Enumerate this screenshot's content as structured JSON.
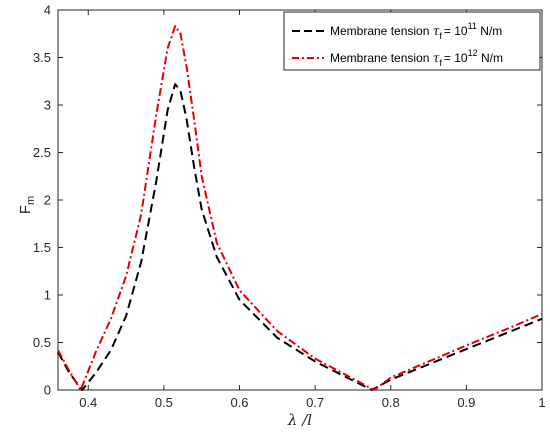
{
  "chart_data": {
    "type": "line",
    "xlabel": "λ /l",
    "ylabel_main": "F",
    "ylabel_sub": "m",
    "xlim": [
      0.36,
      1.0
    ],
    "ylim": [
      0,
      4
    ],
    "xticks": [
      "0.4",
      "0.5",
      "0.6",
      "0.7",
      "0.8",
      "0.9",
      "1"
    ],
    "yticks": [
      "0",
      "0.5",
      "1",
      "1.5",
      "2",
      "2.5",
      "3",
      "3.5",
      "4"
    ],
    "grid": false,
    "legend_position": "top-right",
    "series": [
      {
        "legend_prefix": "Membrane tension",
        "legend_symbol": "τ",
        "legend_sub": "f",
        "legend_value": "= 10",
        "legend_exp": "11",
        "legend_unit": " N/m",
        "color": "#000000",
        "dash": "dashed",
        "x": [
          0.36,
          0.375,
          0.392,
          0.41,
          0.43,
          0.45,
          0.47,
          0.49,
          0.505,
          0.515,
          0.522,
          0.53,
          0.54,
          0.55,
          0.57,
          0.6,
          0.65,
          0.7,
          0.75,
          0.775,
          0.8,
          0.85,
          0.9,
          0.95,
          1.0
        ],
        "y": [
          0.4,
          0.18,
          0.0,
          0.18,
          0.42,
          0.78,
          1.35,
          2.2,
          2.95,
          3.22,
          3.15,
          2.85,
          2.35,
          1.9,
          1.4,
          0.95,
          0.55,
          0.3,
          0.1,
          0.0,
          0.11,
          0.27,
          0.43,
          0.59,
          0.75
        ]
      },
      {
        "legend_prefix": "Membrane tension",
        "legend_symbol": "τ",
        "legend_sub": "f",
        "legend_value": "= 10",
        "legend_exp": "12",
        "legend_unit": " N/m",
        "color": "#e00000",
        "dash": "dashdot",
        "x": [
          0.36,
          0.375,
          0.39,
          0.41,
          0.43,
          0.45,
          0.47,
          0.49,
          0.505,
          0.515,
          0.522,
          0.53,
          0.54,
          0.55,
          0.57,
          0.6,
          0.65,
          0.7,
          0.75,
          0.778,
          0.8,
          0.85,
          0.9,
          0.95,
          1.0
        ],
        "y": [
          0.42,
          0.2,
          0.0,
          0.4,
          0.75,
          1.2,
          1.85,
          2.9,
          3.6,
          3.83,
          3.75,
          3.4,
          2.85,
          2.25,
          1.55,
          1.05,
          0.62,
          0.33,
          0.12,
          0.0,
          0.13,
          0.3,
          0.47,
          0.63,
          0.8
        ]
      }
    ]
  }
}
